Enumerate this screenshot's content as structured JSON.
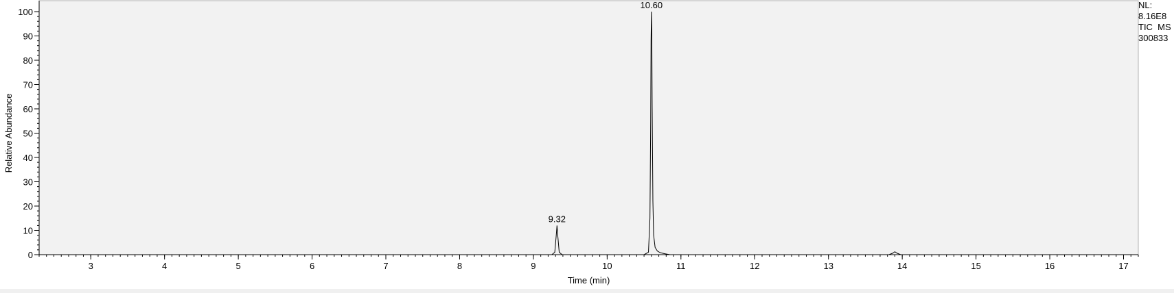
{
  "info": {
    "nl_label": "NL:",
    "nl_value": "8.16E8",
    "trace": "TIC  MS",
    "file": "300833"
  },
  "chart_data": {
    "type": "line",
    "xlabel": "Time (min)",
    "ylabel": "Relative Abundance",
    "xlim": [
      2.3,
      17.2
    ],
    "ylim": [
      0,
      100
    ],
    "xticks": [
      3,
      4,
      5,
      6,
      7,
      8,
      9,
      10,
      11,
      12,
      13,
      14,
      15,
      16,
      17
    ],
    "yticks": [
      0,
      10,
      20,
      30,
      40,
      50,
      60,
      70,
      80,
      90,
      100
    ],
    "grid": false,
    "background": "#f2f2f2",
    "line_color": "#000000",
    "peak_labels": [
      {
        "x": 9.32,
        "y": 12,
        "text": "9.32"
      },
      {
        "x": 10.6,
        "y": 100,
        "text": "10.60"
      }
    ],
    "series": [
      {
        "x": [
          2.3,
          9.25,
          9.29,
          9.31,
          9.32,
          9.33,
          9.35,
          9.39,
          10.5,
          10.56,
          10.58,
          10.59,
          10.595,
          10.6,
          10.605,
          10.61,
          10.62,
          10.63,
          10.65,
          10.68,
          10.72,
          10.78,
          10.85,
          13.82,
          13.87,
          13.9,
          13.93,
          13.98,
          17.2
        ],
        "y": [
          0,
          0,
          1,
          8,
          12,
          8,
          1,
          0,
          0,
          1,
          15,
          55,
          88,
          100,
          92,
          62,
          22,
          8,
          3,
          1.5,
          0.8,
          0.4,
          0,
          0,
          0.6,
          1.2,
          0.6,
          0,
          0
        ]
      }
    ]
  }
}
